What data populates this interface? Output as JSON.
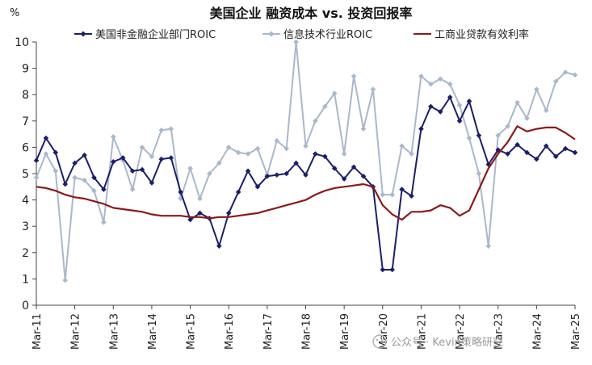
{
  "chart_data": {
    "type": "line",
    "title": "美国企业 融资成本 vs. 投资回报率",
    "ylabel": "%",
    "ylim": [
      0,
      10
    ],
    "yticks": [
      0,
      1,
      2,
      3,
      4,
      5,
      6,
      7,
      8,
      9,
      10
    ],
    "xlim": [
      2011.25,
      2025.25
    ],
    "xticks": [
      "Mar-11",
      "Mar-12",
      "Mar-13",
      "Mar-14",
      "Mar-15",
      "Mar-16",
      "Mar-17",
      "Mar-18",
      "Mar-19",
      "Mar-20",
      "Mar-21",
      "Mar-22",
      "Mar-23",
      "Mar-24",
      "Mar-25"
    ],
    "legend_position": "top",
    "grid": false,
    "series": [
      {
        "name": "美国非金融企业部门ROIC",
        "color": "#1b1f6b",
        "marker": "diamond",
        "points": [
          [
            2011.25,
            5.5
          ],
          [
            2011.5,
            6.35
          ],
          [
            2011.75,
            5.8
          ],
          [
            2012.0,
            4.6
          ],
          [
            2012.25,
            5.4
          ],
          [
            2012.5,
            5.7
          ],
          [
            2012.75,
            4.85
          ],
          [
            2013.0,
            4.4
          ],
          [
            2013.25,
            5.45
          ],
          [
            2013.5,
            5.6
          ],
          [
            2013.75,
            5.1
          ],
          [
            2014.0,
            5.15
          ],
          [
            2014.25,
            4.65
          ],
          [
            2014.5,
            5.55
          ],
          [
            2014.75,
            5.6
          ],
          [
            2015.0,
            4.3
          ],
          [
            2015.25,
            3.25
          ],
          [
            2015.5,
            3.5
          ],
          [
            2015.75,
            3.3
          ],
          [
            2016.0,
            2.25
          ],
          [
            2016.25,
            3.5
          ],
          [
            2016.5,
            4.3
          ],
          [
            2016.75,
            5.1
          ],
          [
            2017.0,
            4.5
          ],
          [
            2017.25,
            4.9
          ],
          [
            2017.5,
            4.95
          ],
          [
            2017.75,
            5.0
          ],
          [
            2018.0,
            5.4
          ],
          [
            2018.25,
            4.95
          ],
          [
            2018.5,
            5.75
          ],
          [
            2018.75,
            5.65
          ],
          [
            2019.0,
            5.2
          ],
          [
            2019.25,
            4.8
          ],
          [
            2019.5,
            5.25
          ],
          [
            2019.75,
            4.9
          ],
          [
            2020.0,
            4.5
          ],
          [
            2020.25,
            1.35
          ],
          [
            2020.5,
            1.35
          ],
          [
            2020.75,
            4.4
          ],
          [
            2021.0,
            4.15
          ],
          [
            2021.25,
            6.7
          ],
          [
            2021.5,
            7.55
          ],
          [
            2021.75,
            7.35
          ],
          [
            2022.0,
            7.9
          ],
          [
            2022.25,
            7.0
          ],
          [
            2022.5,
            7.75
          ],
          [
            2022.75,
            6.45
          ],
          [
            2023.0,
            5.35
          ],
          [
            2023.25,
            5.9
          ],
          [
            2023.5,
            5.75
          ],
          [
            2023.75,
            6.1
          ],
          [
            2024.0,
            5.8
          ],
          [
            2024.25,
            5.55
          ],
          [
            2024.5,
            6.05
          ],
          [
            2024.75,
            5.65
          ],
          [
            2025.0,
            5.95
          ],
          [
            2025.25,
            5.8
          ]
        ]
      },
      {
        "name": "信息技术行业ROIC",
        "color": "#a9b8cc",
        "marker": "diamond",
        "points": [
          [
            2011.25,
            4.85
          ],
          [
            2011.5,
            5.75
          ],
          [
            2011.75,
            5.1
          ],
          [
            2012.0,
            0.95
          ],
          [
            2012.25,
            4.85
          ],
          [
            2012.5,
            4.75
          ],
          [
            2012.75,
            4.35
          ],
          [
            2013.0,
            3.15
          ],
          [
            2013.25,
            6.4
          ],
          [
            2013.5,
            5.5
          ],
          [
            2013.75,
            4.4
          ],
          [
            2014.0,
            6.0
          ],
          [
            2014.25,
            5.65
          ],
          [
            2014.5,
            6.65
          ],
          [
            2014.75,
            6.7
          ],
          [
            2015.0,
            4.05
          ],
          [
            2015.25,
            5.2
          ],
          [
            2015.5,
            4.05
          ],
          [
            2015.75,
            5.0
          ],
          [
            2016.0,
            5.4
          ],
          [
            2016.25,
            6.0
          ],
          [
            2016.5,
            5.8
          ],
          [
            2016.75,
            5.75
          ],
          [
            2017.0,
            5.95
          ],
          [
            2017.25,
            4.95
          ],
          [
            2017.5,
            6.25
          ],
          [
            2017.75,
            5.95
          ],
          [
            2018.0,
            10.0
          ],
          [
            2018.25,
            6.05
          ],
          [
            2018.5,
            7.0
          ],
          [
            2018.75,
            7.55
          ],
          [
            2019.0,
            8.05
          ],
          [
            2019.25,
            5.75
          ],
          [
            2019.5,
            8.7
          ],
          [
            2019.75,
            6.7
          ],
          [
            2020.0,
            8.2
          ],
          [
            2020.25,
            4.2
          ],
          [
            2020.5,
            4.2
          ],
          [
            2020.75,
            6.05
          ],
          [
            2021.0,
            5.75
          ],
          [
            2021.25,
            8.7
          ],
          [
            2021.5,
            8.4
          ],
          [
            2021.75,
            8.6
          ],
          [
            2022.0,
            8.4
          ],
          [
            2022.25,
            7.6
          ],
          [
            2022.5,
            6.35
          ],
          [
            2022.75,
            5.0
          ],
          [
            2023.0,
            2.25
          ],
          [
            2023.25,
            6.45
          ],
          [
            2023.5,
            6.8
          ],
          [
            2023.75,
            7.7
          ],
          [
            2024.0,
            7.1
          ],
          [
            2024.25,
            8.2
          ],
          [
            2024.5,
            7.4
          ],
          [
            2024.75,
            8.5
          ],
          [
            2025.0,
            8.85
          ],
          [
            2025.25,
            8.75
          ]
        ]
      },
      {
        "name": "工商业贷款有效利率",
        "color": "#8b1a1a",
        "marker": "none",
        "points": [
          [
            2011.25,
            4.5
          ],
          [
            2011.5,
            4.45
          ],
          [
            2011.75,
            4.35
          ],
          [
            2012.0,
            4.2
          ],
          [
            2012.25,
            4.1
          ],
          [
            2012.5,
            4.05
          ],
          [
            2012.75,
            3.95
          ],
          [
            2013.0,
            3.85
          ],
          [
            2013.25,
            3.7
          ],
          [
            2013.5,
            3.65
          ],
          [
            2013.75,
            3.6
          ],
          [
            2014.0,
            3.55
          ],
          [
            2014.25,
            3.45
          ],
          [
            2014.5,
            3.4
          ],
          [
            2014.75,
            3.4
          ],
          [
            2015.0,
            3.4
          ],
          [
            2015.25,
            3.35
          ],
          [
            2015.5,
            3.35
          ],
          [
            2015.75,
            3.3
          ],
          [
            2016.0,
            3.35
          ],
          [
            2016.25,
            3.35
          ],
          [
            2016.5,
            3.4
          ],
          [
            2016.75,
            3.45
          ],
          [
            2017.0,
            3.5
          ],
          [
            2017.25,
            3.6
          ],
          [
            2017.5,
            3.7
          ],
          [
            2017.75,
            3.8
          ],
          [
            2018.0,
            3.9
          ],
          [
            2018.25,
            4.0
          ],
          [
            2018.5,
            4.2
          ],
          [
            2018.75,
            4.35
          ],
          [
            2019.0,
            4.45
          ],
          [
            2019.25,
            4.5
          ],
          [
            2019.5,
            4.55
          ],
          [
            2019.75,
            4.6
          ],
          [
            2020.0,
            4.5
          ],
          [
            2020.25,
            3.8
          ],
          [
            2020.5,
            3.45
          ],
          [
            2020.75,
            3.25
          ],
          [
            2021.0,
            3.55
          ],
          [
            2021.25,
            3.55
          ],
          [
            2021.5,
            3.6
          ],
          [
            2021.75,
            3.8
          ],
          [
            2022.0,
            3.7
          ],
          [
            2022.25,
            3.4
          ],
          [
            2022.5,
            3.6
          ],
          [
            2022.75,
            4.4
          ],
          [
            2023.0,
            5.2
          ],
          [
            2023.25,
            5.75
          ],
          [
            2023.5,
            6.2
          ],
          [
            2023.75,
            6.8
          ],
          [
            2024.0,
            6.6
          ],
          [
            2024.25,
            6.7
          ],
          [
            2024.5,
            6.75
          ],
          [
            2024.75,
            6.75
          ],
          [
            2025.0,
            6.55
          ],
          [
            2025.25,
            6.3
          ]
        ]
      }
    ]
  },
  "watermark": {
    "text": "公众号 · Kevin策略研究"
  }
}
